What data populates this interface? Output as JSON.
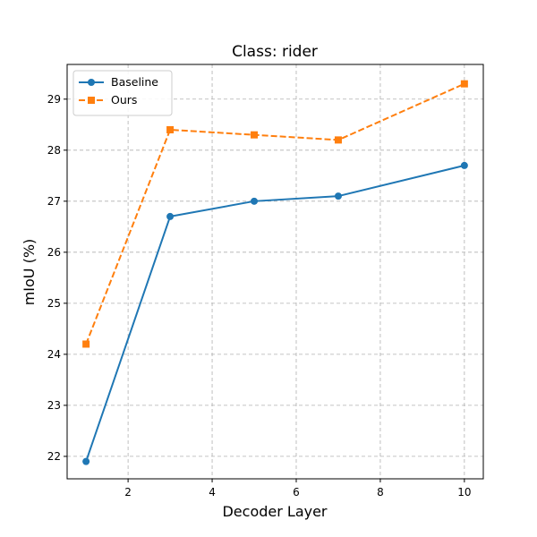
{
  "chart_data": {
    "type": "line",
    "title": "Class: rider",
    "xlabel": "Decoder Layer",
    "ylabel": "mIoU (%)",
    "xlim": [
      0.55,
      10.45
    ],
    "ylim": [
      21.56,
      29.68
    ],
    "xticks": [
      2,
      4,
      6,
      8,
      10
    ],
    "yticks": [
      22,
      23,
      24,
      25,
      26,
      27,
      28,
      29
    ],
    "grid": true,
    "legend_position": "upper-left",
    "x": [
      1,
      3,
      5,
      7,
      10
    ],
    "series": [
      {
        "name": "Baseline",
        "values": [
          21.9,
          26.7,
          27.0,
          27.1,
          27.7
        ],
        "color": "#1f77b4",
        "marker": "circle",
        "linestyle": "solid"
      },
      {
        "name": "Ours",
        "values": [
          24.2,
          28.4,
          28.3,
          28.2,
          29.3
        ],
        "color": "#ff7f0e",
        "marker": "square",
        "linestyle": "dashed"
      }
    ]
  }
}
